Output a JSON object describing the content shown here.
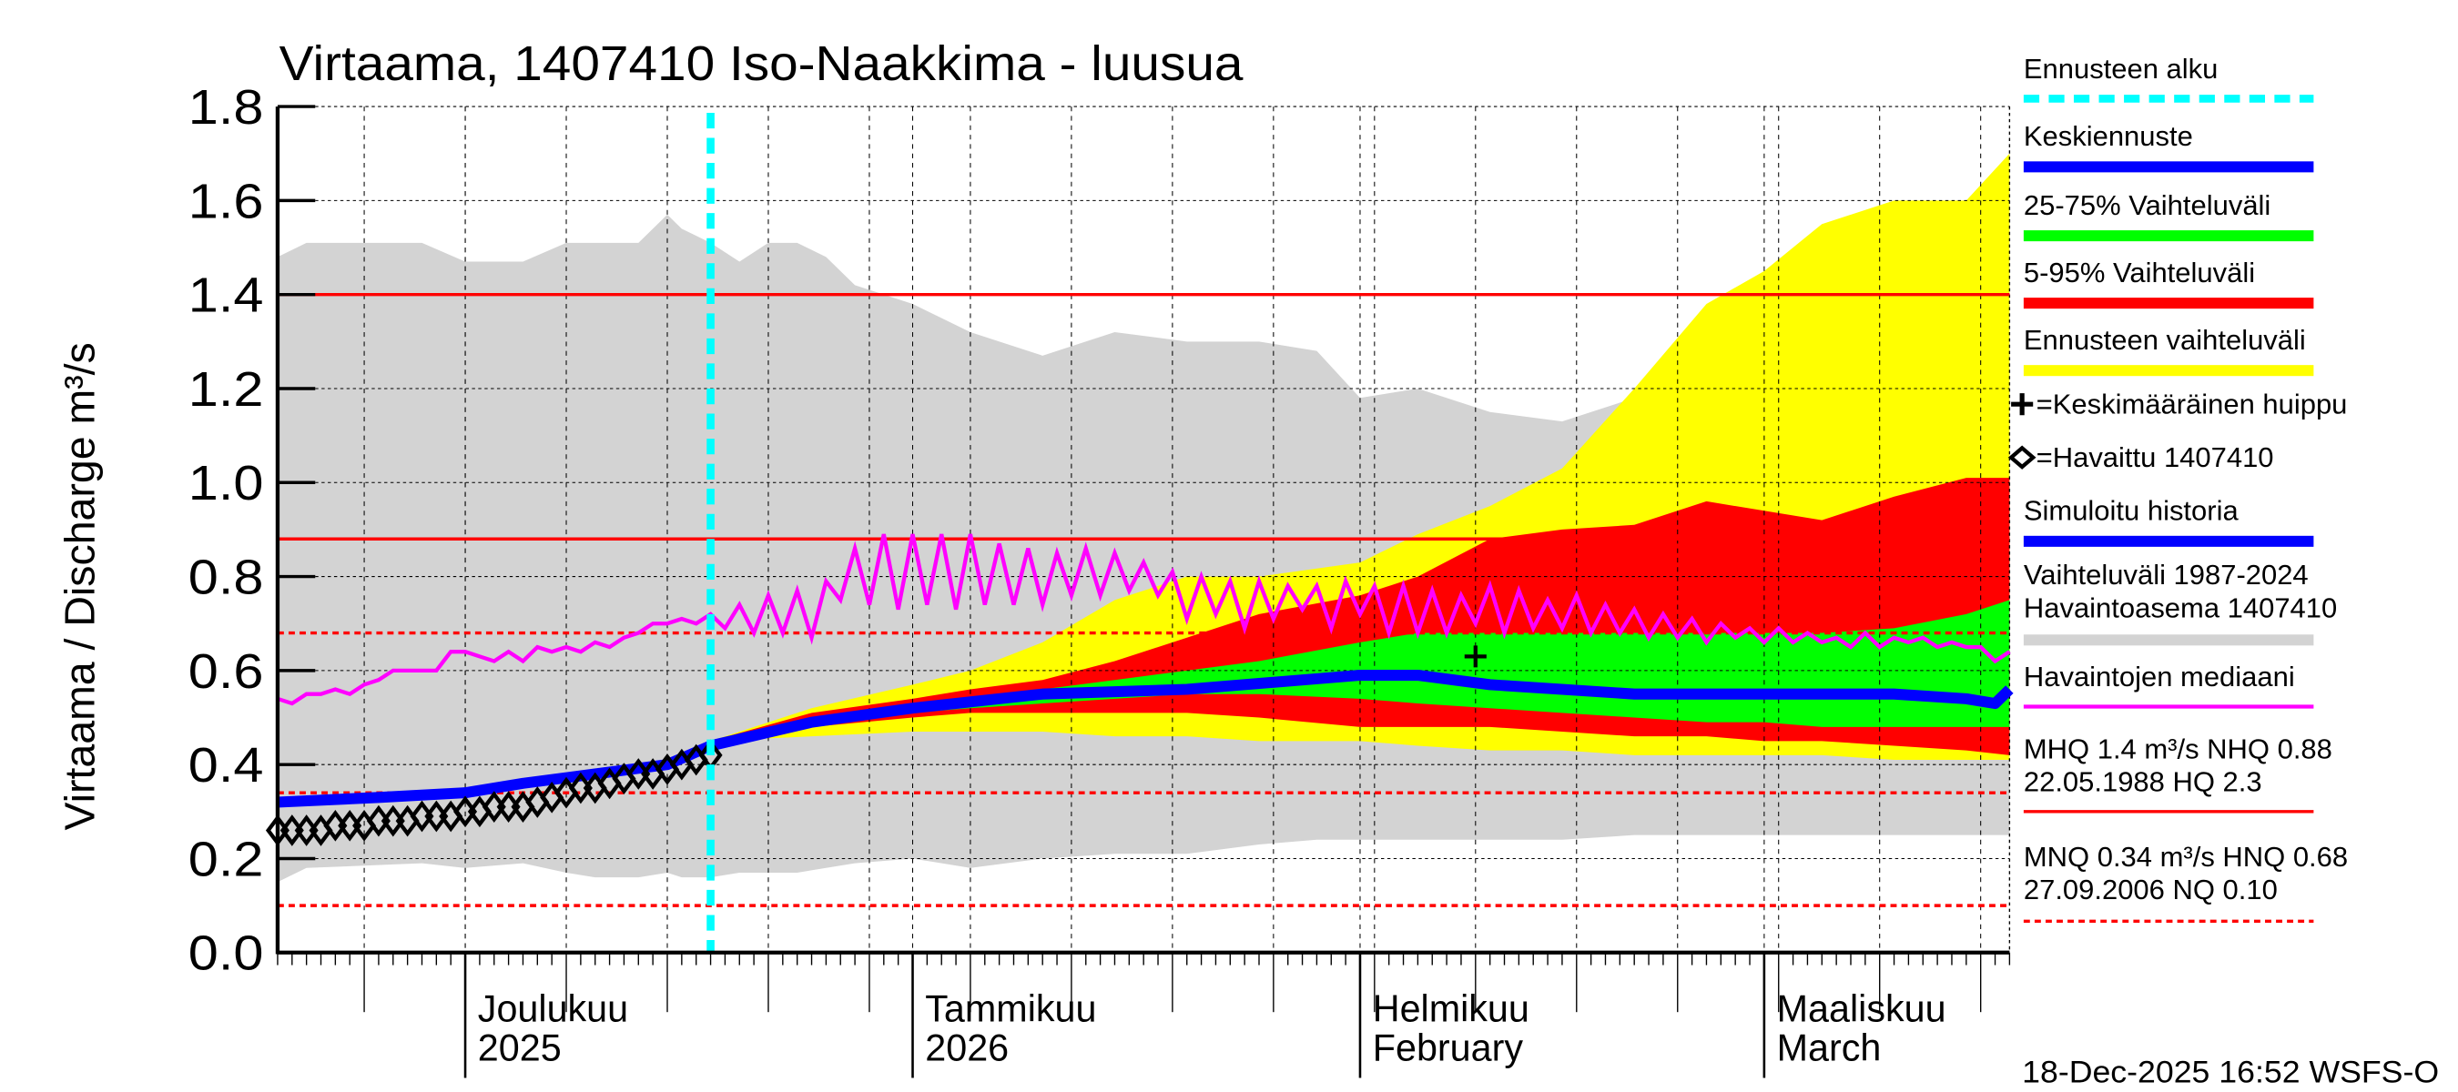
{
  "chart_data": {
    "type": "area",
    "title": "Virtaama, 1407410 Iso-Naakkima - luusua",
    "ylabel": "Virtaama / Discharge    m³/s",
    "ylim": [
      0,
      1.8
    ],
    "yticks": [
      "0.0",
      "0.2",
      "0.4",
      "0.6",
      "0.8",
      "1.0",
      "1.2",
      "1.4",
      "1.6",
      "1.8"
    ],
    "x_start_date": "2025-11-18",
    "x_days": 120,
    "forecast_start_day": 30,
    "month_labels": [
      {
        "day": 13,
        "line1": "Joulukuu",
        "line2": "2025"
      },
      {
        "day": 44,
        "line1": "Tammikuu",
        "line2": "2026"
      },
      {
        "day": 75,
        "line1": "Helmikuu",
        "line2": "February"
      },
      {
        "day": 103,
        "line1": "Maaliskuu",
        "line2": "March"
      }
    ],
    "reference_lines": [
      {
        "name": "MHQ",
        "value": 1.4,
        "style": "solid"
      },
      {
        "name": "NHQ",
        "value": 0.88,
        "style": "solid"
      },
      {
        "name": "HNQ",
        "value": 0.68,
        "style": "dashed"
      },
      {
        "name": "MNQ",
        "value": 0.34,
        "style": "dashed"
      },
      {
        "name": "NQ",
        "value": 0.1,
        "style": "dashed"
      }
    ],
    "historical_range": {
      "days": [
        0,
        2,
        10,
        13,
        17,
        20,
        22,
        25,
        27,
        28,
        30,
        32,
        34,
        36,
        38,
        40,
        44,
        48,
        53,
        58,
        63,
        68,
        72,
        75,
        79,
        84,
        89,
        94,
        99,
        103,
        107,
        112,
        117,
        120
      ],
      "upper": [
        1.48,
        1.51,
        1.51,
        1.47,
        1.47,
        1.51,
        1.51,
        1.51,
        1.57,
        1.54,
        1.51,
        1.47,
        1.51,
        1.51,
        1.48,
        1.42,
        1.38,
        1.32,
        1.27,
        1.32,
        1.3,
        1.3,
        1.28,
        1.18,
        1.2,
        1.15,
        1.13,
        1.18,
        1.22,
        1.29,
        1.29,
        1.26,
        1.28,
        1.26
      ],
      "lower": [
        0.15,
        0.18,
        0.19,
        0.18,
        0.19,
        0.17,
        0.16,
        0.16,
        0.17,
        0.16,
        0.16,
        0.17,
        0.17,
        0.17,
        0.18,
        0.19,
        0.2,
        0.18,
        0.2,
        0.21,
        0.21,
        0.23,
        0.24,
        0.24,
        0.24,
        0.24,
        0.24,
        0.25,
        0.25,
        0.25,
        0.25,
        0.25,
        0.25,
        0.25
      ]
    },
    "forecast_range": {
      "days": [
        30,
        37,
        44,
        48,
        53,
        58,
        63,
        68,
        75,
        79,
        84,
        89,
        94,
        99,
        103,
        107,
        112,
        117,
        120
      ],
      "upper": [
        0.45,
        0.52,
        0.57,
        0.6,
        0.66,
        0.75,
        0.8,
        0.8,
        0.83,
        0.89,
        0.95,
        1.03,
        1.2,
        1.38,
        1.45,
        1.55,
        1.6,
        1.6,
        1.7
      ],
      "lower": [
        0.45,
        0.46,
        0.47,
        0.47,
        0.47,
        0.46,
        0.46,
        0.45,
        0.45,
        0.44,
        0.43,
        0.43,
        0.42,
        0.42,
        0.42,
        0.42,
        0.41,
        0.41,
        0.41
      ]
    },
    "range_5_95": {
      "days": [
        30,
        37,
        44,
        48,
        53,
        58,
        63,
        68,
        75,
        79,
        84,
        89,
        94,
        99,
        103,
        107,
        112,
        117,
        120
      ],
      "upper": [
        0.45,
        0.51,
        0.54,
        0.56,
        0.58,
        0.62,
        0.67,
        0.72,
        0.76,
        0.8,
        0.88,
        0.9,
        0.91,
        0.96,
        0.94,
        0.92,
        0.97,
        1.01,
        1.01
      ],
      "lower": [
        0.45,
        0.48,
        0.5,
        0.51,
        0.51,
        0.51,
        0.51,
        0.5,
        0.48,
        0.48,
        0.48,
        0.47,
        0.46,
        0.46,
        0.45,
        0.45,
        0.44,
        0.43,
        0.42
      ]
    },
    "range_25_75": {
      "days": [
        30,
        37,
        44,
        48,
        53,
        58,
        63,
        68,
        75,
        79,
        84,
        89,
        94,
        99,
        103,
        107,
        112,
        117,
        120
      ],
      "upper": [
        0.45,
        0.5,
        0.53,
        0.54,
        0.56,
        0.58,
        0.6,
        0.62,
        0.66,
        0.68,
        0.68,
        0.68,
        0.68,
        0.68,
        0.68,
        0.68,
        0.69,
        0.72,
        0.75
      ],
      "lower": [
        0.45,
        0.49,
        0.51,
        0.52,
        0.53,
        0.54,
        0.55,
        0.55,
        0.54,
        0.53,
        0.52,
        0.51,
        0.5,
        0.49,
        0.49,
        0.48,
        0.48,
        0.48,
        0.48
      ]
    },
    "median_forecast": {
      "days": [
        0,
        7,
        13,
        17,
        22,
        27,
        30,
        37,
        44,
        53,
        63,
        75,
        79,
        84,
        94,
        103,
        112,
        117,
        119,
        120
      ],
      "values": [
        0.32,
        0.33,
        0.34,
        0.36,
        0.38,
        0.4,
        0.44,
        0.49,
        0.52,
        0.55,
        0.56,
        0.59,
        0.59,
        0.57,
        0.55,
        0.55,
        0.55,
        0.54,
        0.53,
        0.56
      ]
    },
    "observed": [
      0.26,
      0.26,
      0.26,
      0.26,
      0.27,
      0.27,
      0.27,
      0.28,
      0.28,
      0.28,
      0.29,
      0.29,
      0.29,
      0.3,
      0.3,
      0.31,
      0.31,
      0.31,
      0.32,
      0.33,
      0.34,
      0.35,
      0.35,
      0.36,
      0.37,
      0.38,
      0.38,
      0.39,
      0.4,
      0.41,
      0.42
    ],
    "observed_median": [
      0.54,
      0.53,
      0.55,
      0.55,
      0.56,
      0.55,
      0.57,
      0.58,
      0.6,
      0.6,
      0.6,
      0.6,
      0.64,
      0.64,
      0.63,
      0.62,
      0.64,
      0.62,
      0.65,
      0.64,
      0.65,
      0.64,
      0.66,
      0.65,
      0.67,
      0.68,
      0.7,
      0.7,
      0.71,
      0.7,
      0.72,
      0.69,
      0.74,
      0.68,
      0.76,
      0.68,
      0.77,
      0.67,
      0.79,
      0.75,
      0.86,
      0.74,
      0.89,
      0.73,
      0.89,
      0.74,
      0.89,
      0.73,
      0.89,
      0.74,
      0.87,
      0.74,
      0.86,
      0.74,
      0.85,
      0.76,
      0.86,
      0.76,
      0.85,
      0.77,
      0.83,
      0.76,
      0.81,
      0.71,
      0.8,
      0.72,
      0.79,
      0.69,
      0.79,
      0.71,
      0.78,
      0.73,
      0.78,
      0.69,
      0.79,
      0.72,
      0.78,
      0.68,
      0.78,
      0.68,
      0.77,
      0.68,
      0.76,
      0.7,
      0.78,
      0.68,
      0.77,
      0.69,
      0.75,
      0.69,
      0.76,
      0.68,
      0.74,
      0.68,
      0.73,
      0.67,
      0.72,
      0.67,
      0.71,
      0.66,
      0.7,
      0.67,
      0.69,
      0.66,
      0.69,
      0.66,
      0.68,
      0.66,
      0.67,
      0.65,
      0.68,
      0.65,
      0.67,
      0.66,
      0.67,
      0.65,
      0.66,
      0.65,
      0.65,
      0.62,
      0.64
    ],
    "mean_peak": {
      "day": 83,
      "value": 0.63
    },
    "colors": {
      "forecast_start": "#00ffff",
      "median": "#0000ff",
      "p25_75": "#00ff00",
      "p5_95": "#ff0000",
      "forecast_range": "#ffff00",
      "historical": "#d3d3d3",
      "observed_median": "#ff00ff",
      "reference": "#ff0000"
    },
    "legend": [
      {
        "label": "Ennusteen alku",
        "kind": "dash",
        "color": "#00ffff"
      },
      {
        "label": "Keskiennuste",
        "kind": "bar",
        "color": "#0000ff"
      },
      {
        "label": "25-75% Vaihteluväli",
        "kind": "bar",
        "color": "#00ff00"
      },
      {
        "label": "5-95% Vaihteluväli",
        "kind": "bar",
        "color": "#ff0000"
      },
      {
        "label": "Ennusteen vaihteluväli",
        "kind": "bar",
        "color": "#ffff00"
      },
      {
        "label": "=Keskimääräinen huippu",
        "kind": "plus"
      },
      {
        "label": "=Havaittu 1407410",
        "kind": "diamond"
      },
      {
        "label": "Simuloitu historia",
        "kind": "bar",
        "color": "#0000ff"
      },
      {
        "label": "Vaihteluväli 1987-2024",
        "label2": "Havaintoasema 1407410",
        "kind": "bar2",
        "color": "#d3d3d3"
      },
      {
        "label": "Havaintojen mediaani",
        "kind": "thin",
        "color": "#ff00ff"
      },
      {
        "label": "MHQ  1.4 m³/s NHQ 0.88",
        "label2": "22.05.1988 HQ  2.3",
        "kind": "redline"
      },
      {
        "label": "MNQ 0.34 m³/s HNQ 0.68",
        "label2": "27.09.2006 NQ 0.10",
        "kind": "reddash"
      }
    ],
    "timestamp": "18-Dec-2025 16:52 WSFS-O"
  }
}
